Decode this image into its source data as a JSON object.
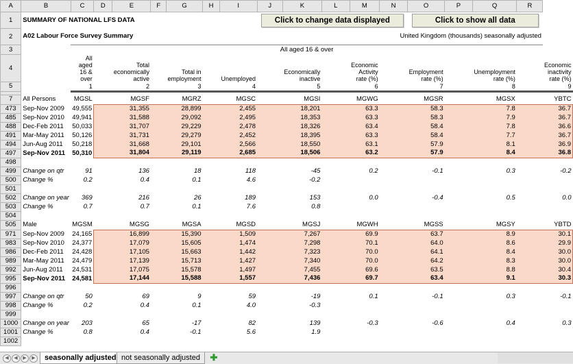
{
  "columns": [
    "A",
    "B",
    "C",
    "D",
    "E",
    "F",
    "G",
    "H",
    "I",
    "J",
    "K",
    "L",
    "M",
    "N",
    "O",
    "P",
    "Q",
    "R"
  ],
  "title1": "SUMMARY OF NATIONAL LFS DATA",
  "title2": "A02  Labour Force Survey Summary",
  "btn_change": "Click to change data displayed",
  "btn_show_all": "Click to show all data",
  "subtitle_right": "United Kingdom (thousands) seasonally adjusted",
  "group_header": "All aged 16 & over",
  "headers": [
    "All aged 16 & over",
    "Total economically active",
    "Total in employment",
    "Unemployed",
    "Economically inactive",
    "Economic Activity rate (%)",
    "Employment rate (%)",
    "Unemployment rate (%)",
    "Economic inactivity rate (%)"
  ],
  "col_numbers": [
    "1",
    "2",
    "3",
    "4",
    "5",
    "6",
    "7",
    "8",
    "9"
  ],
  "row_numbers": {
    "r1": "1",
    "r2": "2",
    "r3": "3",
    "r4": "4",
    "r5": "5",
    "r7": "7"
  },
  "sections": [
    {
      "label": "All Persons",
      "label_row": "7",
      "codes": [
        "MGSL",
        "MGSF",
        "MGRZ",
        "MGSC",
        "MGSI",
        "MGWG",
        "MGSR",
        "MGSX",
        "YBTC"
      ],
      "rows": [
        {
          "rn": "473",
          "period": "Sep-Nov 2009",
          "v": [
            "49,555",
            "31,355",
            "28,899",
            "2,455",
            "18,201",
            "63.3",
            "58.3",
            "7.8",
            "36.7"
          ]
        },
        {
          "rn": "485",
          "period": "Sep-Nov 2010",
          "v": [
            "49,941",
            "31,588",
            "29,092",
            "2,495",
            "18,353",
            "63.3",
            "58.3",
            "7.9",
            "36.7"
          ]
        },
        {
          "rn": "488",
          "period": "Dec-Feb 2011",
          "v": [
            "50,033",
            "31,707",
            "29,229",
            "2,478",
            "18,326",
            "63.4",
            "58.4",
            "7.8",
            "36.6"
          ]
        },
        {
          "rn": "491",
          "period": "Mar-May 2011",
          "v": [
            "50,126",
            "31,731",
            "29,279",
            "2,452",
            "18,395",
            "63.3",
            "58.4",
            "7.7",
            "36.7"
          ]
        },
        {
          "rn": "494",
          "period": "Jun-Aug 2011",
          "v": [
            "50,218",
            "31,668",
            "29,101",
            "2,566",
            "18,550",
            "63.1",
            "57.9",
            "8.1",
            "36.9"
          ]
        },
        {
          "rn": "497",
          "period": "Sep-Nov 2011",
          "v": [
            "50,310",
            "31,804",
            "29,119",
            "2,685",
            "18,506",
            "63.2",
            "57.9",
            "8.4",
            "36.8"
          ],
          "bold": true
        }
      ],
      "changes": [
        {
          "rn": "498",
          "label": "",
          "v": [
            "",
            "",
            "",
            "",
            "",
            "",
            "",
            "",
            ""
          ]
        },
        {
          "rn": "499",
          "label": "Change on qtr",
          "v": [
            "91",
            "136",
            "18",
            "118",
            "-45",
            "0.2",
            "-0.1",
            "0.3",
            "-0.2"
          ]
        },
        {
          "rn": "500",
          "label": "Change %",
          "v": [
            "0.2",
            "0.4",
            "0.1",
            "4.6",
            "-0.2",
            "",
            "",
            "",
            ""
          ]
        },
        {
          "rn": "501",
          "label": "",
          "v": [
            "",
            "",
            "",
            "",
            "",
            "",
            "",
            "",
            ""
          ]
        },
        {
          "rn": "502",
          "label": "Change on year",
          "v": [
            "369",
            "216",
            "26",
            "189",
            "153",
            "0.0",
            "-0.4",
            "0.5",
            "0.0"
          ]
        },
        {
          "rn": "503",
          "label": "Change %",
          "v": [
            "0.7",
            "0.7",
            "0.1",
            "7.6",
            "0.8",
            "",
            "",
            "",
            ""
          ]
        },
        {
          "rn": "504",
          "label": "",
          "v": [
            "",
            "",
            "",
            "",
            "",
            "",
            "",
            "",
            ""
          ]
        }
      ]
    },
    {
      "label": "Male",
      "label_row": "505",
      "codes": [
        "MGSM",
        "MGSG",
        "MGSA",
        "MGSD",
        "MGSJ",
        "MGWH",
        "MGSS",
        "MGSY",
        "YBTD"
      ],
      "rows": [
        {
          "rn": "971",
          "period": "Sep-Nov 2009",
          "v": [
            "24,165",
            "16,899",
            "15,390",
            "1,509",
            "7,267",
            "69.9",
            "63.7",
            "8.9",
            "30.1"
          ]
        },
        {
          "rn": "983",
          "period": "Sep-Nov 2010",
          "v": [
            "24,377",
            "17,079",
            "15,605",
            "1,474",
            "7,298",
            "70.1",
            "64.0",
            "8.6",
            "29.9"
          ]
        },
        {
          "rn": "986",
          "period": "Dec-Feb 2011",
          "v": [
            "24,428",
            "17,105",
            "15,663",
            "1,442",
            "7,323",
            "70.0",
            "64.1",
            "8.4",
            "30.0"
          ]
        },
        {
          "rn": "989",
          "period": "Mar-May 2011",
          "v": [
            "24,479",
            "17,139",
            "15,713",
            "1,427",
            "7,340",
            "70.0",
            "64.2",
            "8.3",
            "30.0"
          ]
        },
        {
          "rn": "992",
          "period": "Jun-Aug 2011",
          "v": [
            "24,531",
            "17,075",
            "15,578",
            "1,497",
            "7,455",
            "69.6",
            "63.5",
            "8.8",
            "30.4"
          ]
        },
        {
          "rn": "995",
          "period": "Sep-Nov 2011",
          "v": [
            "24,581",
            "17,144",
            "15,588",
            "1,557",
            "7,436",
            "69.7",
            "63.4",
            "9.1",
            "30.3"
          ],
          "bold": true
        }
      ],
      "changes": [
        {
          "rn": "996",
          "label": "",
          "v": [
            "",
            "",
            "",
            "",
            "",
            "",
            "",
            "",
            ""
          ]
        },
        {
          "rn": "997",
          "label": "Change on qtr",
          "v": [
            "50",
            "69",
            "9",
            "59",
            "-19",
            "0.1",
            "-0.1",
            "0.3",
            "-0.1"
          ]
        },
        {
          "rn": "998",
          "label": "Change %",
          "v": [
            "0.2",
            "0.4",
            "0.1",
            "4.0",
            "-0.3",
            "",
            "",
            "",
            ""
          ]
        },
        {
          "rn": "999",
          "label": "",
          "v": [
            "",
            "",
            "",
            "",
            "",
            "",
            "",
            "",
            ""
          ]
        },
        {
          "rn": "1000",
          "label": "Change on year",
          "v": [
            "203",
            "65",
            "-17",
            "82",
            "139",
            "-0.3",
            "-0.6",
            "0.4",
            "0.3"
          ]
        },
        {
          "rn": "1001",
          "label": "Change %",
          "v": [
            "0.8",
            "0.4",
            "-0.1",
            "5.6",
            "1.9",
            "",
            "",
            "",
            ""
          ]
        },
        {
          "rn": "1002",
          "label": "",
          "v": [
            "",
            "",
            "",
            "",
            "",
            "",
            "",
            "",
            ""
          ]
        }
      ]
    }
  ],
  "tabs": {
    "active": "seasonally adjusted",
    "inactive": "not seasonally adjusted"
  }
}
